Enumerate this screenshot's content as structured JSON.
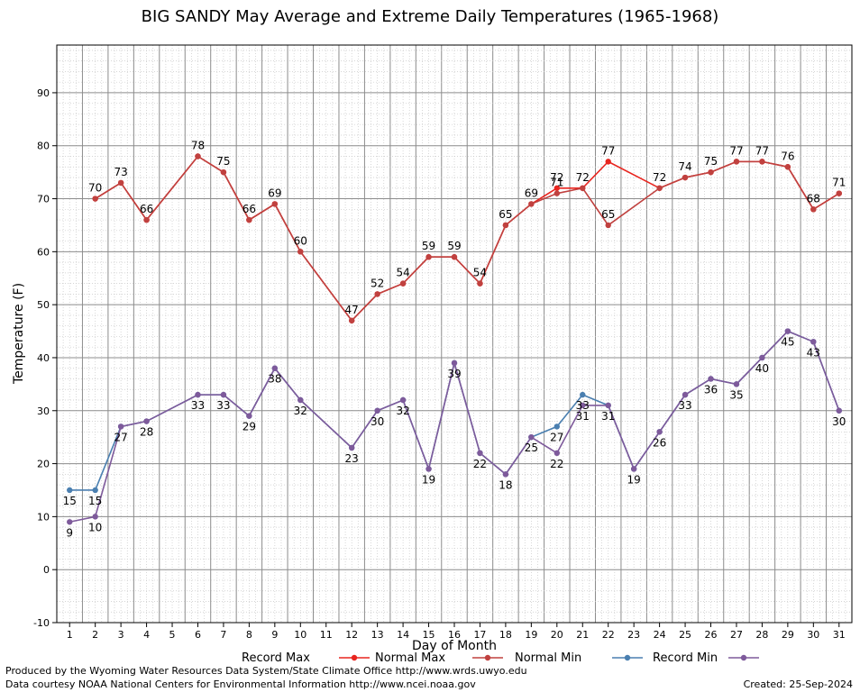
{
  "chart_data": {
    "type": "line",
    "title": "BIG SANDY May Average and Extreme Daily Temperatures (1965-1968)",
    "xlabel": "Day of Month",
    "ylabel": "Temperature (F)",
    "xlim": [
      0.5,
      31.5
    ],
    "ylim": [
      -10,
      99
    ],
    "yticks": [
      -10,
      0,
      10,
      20,
      30,
      40,
      50,
      60,
      70,
      80,
      90
    ],
    "x": [
      1,
      2,
      3,
      4,
      5,
      6,
      7,
      8,
      9,
      10,
      11,
      12,
      13,
      14,
      15,
      16,
      17,
      18,
      19,
      20,
      21,
      22,
      23,
      24,
      25,
      26,
      27,
      28,
      29,
      30,
      31
    ],
    "grid": true,
    "legend_position": "bottom",
    "series": [
      {
        "name": "Record Max",
        "color": "#e8251f",
        "values": [
          null,
          70,
          73,
          66,
          null,
          78,
          75,
          66,
          69,
          60,
          null,
          47,
          52,
          54,
          59,
          59,
          54,
          65,
          69,
          72,
          72,
          77,
          null,
          72,
          74,
          75,
          77,
          77,
          76,
          68,
          71
        ]
      },
      {
        "name": "Normal Max",
        "color": "#c0413f",
        "values": [
          null,
          70,
          73,
          66,
          null,
          78,
          75,
          66,
          69,
          60,
          null,
          47,
          52,
          54,
          59,
          59,
          54,
          65,
          69,
          71,
          72,
          65,
          null,
          72,
          74,
          75,
          77,
          77,
          76,
          68,
          71
        ]
      },
      {
        "name": "Normal Min",
        "color": "#4a7fb0",
        "values": [
          15,
          15,
          27,
          28,
          null,
          33,
          33,
          29,
          38,
          32,
          null,
          23,
          30,
          32,
          19,
          39,
          22,
          18,
          25,
          27,
          33,
          31,
          19,
          26,
          33,
          36,
          35,
          40,
          45,
          43,
          30
        ]
      },
      {
        "name": "Record Min",
        "color": "#7e5a9b",
        "values": [
          9,
          10,
          27,
          28,
          null,
          33,
          33,
          29,
          38,
          32,
          null,
          23,
          30,
          32,
          19,
          39,
          22,
          18,
          25,
          22,
          31,
          31,
          19,
          26,
          33,
          36,
          35,
          40,
          45,
          43,
          30
        ]
      }
    ]
  },
  "footer": {
    "produced": "Produced by the Wyoming Water Resources Data System/State Climate Office http://www.wrds.uwyo.edu",
    "courtesy": "Data courtesy NOAA National Centers for Environmental Information http://www.ncei.noaa.gov",
    "created": "Created:  25-Sep-2024"
  }
}
